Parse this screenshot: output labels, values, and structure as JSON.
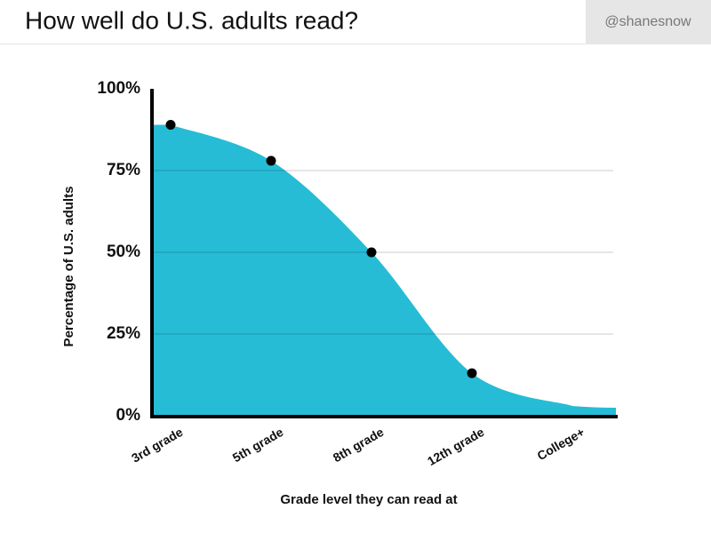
{
  "chart_data": {
    "type": "area",
    "title": "How well do U.S. adults read?",
    "credit": "@shanesnow",
    "x_label": "Grade level they can read at",
    "y_label": "Percentage of U.S. adults",
    "categories": [
      "3rd grade",
      "5th grade",
      "8th grade",
      "12th grade",
      "College+"
    ],
    "values": [
      89,
      78,
      50,
      13,
      3
    ],
    "markers": [
      true,
      true,
      true,
      true,
      false
    ],
    "color": "#26bcd6",
    "marker_color": "#000000",
    "ylim": [
      0,
      100
    ],
    "yticks": [
      {
        "value": 0,
        "label": "0%"
      },
      {
        "value": 25,
        "label": "25%"
      },
      {
        "value": 50,
        "label": "50%"
      },
      {
        "value": 75,
        "label": "75%"
      },
      {
        "value": 100,
        "label": "100%"
      }
    ],
    "grid": true
  }
}
